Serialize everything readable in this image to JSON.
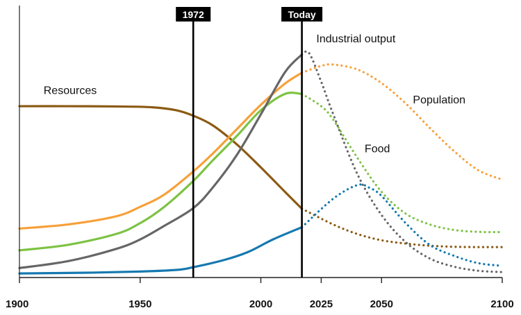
{
  "chart_data": {
    "type": "line",
    "title": "",
    "xlabel": "",
    "ylabel": "",
    "xlim": [
      1900,
      2100
    ],
    "ylim": [
      0,
      100
    ],
    "x_ticks": [
      {
        "value": 1900,
        "label": "1900"
      },
      {
        "value": 1950,
        "label": "1950"
      },
      {
        "value": 2000,
        "label": "2000"
      },
      {
        "value": 2025,
        "label": "2025"
      },
      {
        "value": 2050,
        "label": "2050"
      },
      {
        "value": 2100,
        "label": "2100"
      }
    ],
    "grid": false,
    "dashed_after_year": 2017,
    "markers": [
      {
        "year": 1972,
        "label": "1972"
      },
      {
        "year": 2017,
        "label": "Today"
      }
    ],
    "series": [
      {
        "name": "Resources",
        "color": "#8B5A12",
        "points": [
          [
            1900,
            63
          ],
          [
            1920,
            63
          ],
          [
            1940,
            62.9
          ],
          [
            1955,
            62.6
          ],
          [
            1965,
            61.5
          ],
          [
            1972,
            59.5
          ],
          [
            1980,
            56
          ],
          [
            1990,
            49
          ],
          [
            2000,
            40.5
          ],
          [
            2010,
            31.5
          ],
          [
            2017,
            25.3
          ],
          [
            2030,
            19.5
          ],
          [
            2040,
            16
          ],
          [
            2050,
            13.7
          ],
          [
            2060,
            12.5
          ],
          [
            2070,
            11.7
          ],
          [
            2080,
            11.3
          ],
          [
            2090,
            11.2
          ],
          [
            2100,
            11.2
          ]
        ]
      },
      {
        "name": "Population",
        "color": "#F7A039",
        "points": [
          [
            1900,
            18
          ],
          [
            1920,
            19.5
          ],
          [
            1940,
            22.5
          ],
          [
            1950,
            26
          ],
          [
            1960,
            30.5
          ],
          [
            1972,
            39
          ],
          [
            1980,
            45.5
          ],
          [
            1990,
            54.5
          ],
          [
            2000,
            63.5
          ],
          [
            2010,
            71.3
          ],
          [
            2017,
            75.3
          ],
          [
            2025,
            77.8
          ],
          [
            2030,
            78.3
          ],
          [
            2040,
            76.5
          ],
          [
            2050,
            71.5
          ],
          [
            2060,
            64
          ],
          [
            2070,
            55
          ],
          [
            2080,
            46.5
          ],
          [
            2090,
            39.5
          ],
          [
            2100,
            36
          ]
        ]
      },
      {
        "name": "Food",
        "color": "#7DC243",
        "points": [
          [
            1900,
            10
          ],
          [
            1920,
            12
          ],
          [
            1940,
            16
          ],
          [
            1950,
            20
          ],
          [
            1960,
            26
          ],
          [
            1972,
            35.5
          ],
          [
            1980,
            43
          ],
          [
            1990,
            52
          ],
          [
            2000,
            61.5
          ],
          [
            2010,
            67.5
          ],
          [
            2017,
            67.5
          ],
          [
            2025,
            63
          ],
          [
            2030,
            58
          ],
          [
            2040,
            44
          ],
          [
            2050,
            31.5
          ],
          [
            2060,
            23.5
          ],
          [
            2070,
            19.5
          ],
          [
            2080,
            17.5
          ],
          [
            2090,
            16.8
          ],
          [
            2100,
            16.7
          ]
        ]
      },
      {
        "name": "Industrial output",
        "color": "#666666",
        "points": [
          [
            1900,
            3.5
          ],
          [
            1920,
            6
          ],
          [
            1940,
            10.5
          ],
          [
            1950,
            14
          ],
          [
            1960,
            19
          ],
          [
            1972,
            25.5
          ],
          [
            1980,
            33
          ],
          [
            1990,
            45
          ],
          [
            2000,
            60
          ],
          [
            2010,
            75.5
          ],
          [
            2017,
            82
          ],
          [
            2020,
            82.5
          ],
          [
            2025,
            72
          ],
          [
            2030,
            60
          ],
          [
            2040,
            38
          ],
          [
            2050,
            23
          ],
          [
            2060,
            13
          ],
          [
            2070,
            7
          ],
          [
            2080,
            4
          ],
          [
            2090,
            2.5
          ],
          [
            2100,
            2
          ]
        ]
      },
      {
        "name": "",
        "color": "#1679B0",
        "points": [
          [
            1900,
            1.5
          ],
          [
            1930,
            1.8
          ],
          [
            1950,
            2.2
          ],
          [
            1965,
            2.8
          ],
          [
            1972,
            3.8
          ],
          [
            1985,
            6.5
          ],
          [
            1995,
            9.5
          ],
          [
            2005,
            14
          ],
          [
            2017,
            18.5
          ],
          [
            2030,
            29
          ],
          [
            2040,
            34
          ],
          [
            2045,
            33
          ],
          [
            2050,
            30
          ],
          [
            2060,
            20
          ],
          [
            2070,
            12
          ],
          [
            2080,
            8
          ],
          [
            2090,
            5.3
          ],
          [
            2100,
            4.3
          ]
        ]
      }
    ],
    "labels": [
      {
        "text": "Resources",
        "series": "Resources",
        "pos": [
          1910,
          67.5
        ]
      },
      {
        "text": "Population",
        "series": "Population",
        "pos": [
          2063,
          64
        ]
      },
      {
        "text": "Food",
        "series": "Food",
        "pos": [
          2043,
          46
        ]
      },
      {
        "text": "Industrial output",
        "series": "Industrial output",
        "pos": [
          2023,
          86.5
        ]
      }
    ]
  }
}
